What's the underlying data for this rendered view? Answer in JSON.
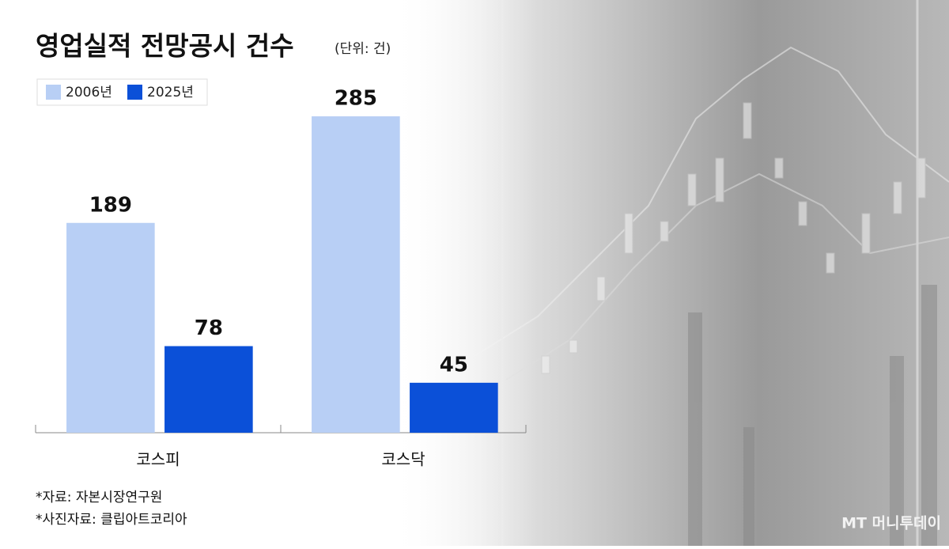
{
  "chart_data": {
    "type": "bar",
    "title": "영업실적 전망공시 건수",
    "subtitle": "(단위: 건)",
    "categories": [
      "코스피",
      "코스닥"
    ],
    "series": [
      {
        "name": "2006년",
        "color": "#b8cff5",
        "values": [
          189,
          285
        ]
      },
      {
        "name": "2025년",
        "color": "#0b50d8",
        "values": [
          78,
          45
        ]
      }
    ],
    "ylim": [
      0,
      300
    ],
    "notes": [
      "*자료: 자본시장연구원",
      "*사진자료: 클립아트코리아"
    ],
    "watermark": "MT 머니투데이"
  }
}
